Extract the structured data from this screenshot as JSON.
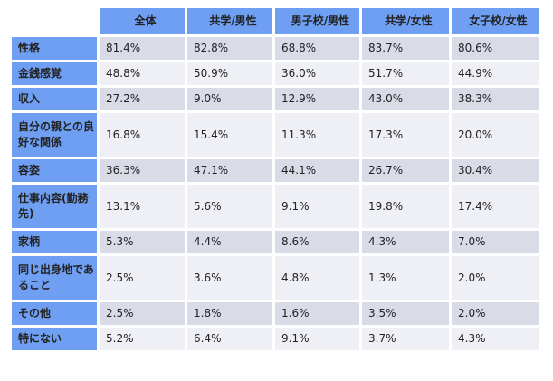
{
  "table": {
    "columns": [
      "全体",
      "共学/男性",
      "男子校/男性",
      "共学/女性",
      "女子校/女性"
    ],
    "rows": [
      {
        "label": "性格",
        "values": [
          "81.4%",
          "82.8%",
          "68.8%",
          "83.7%",
          "80.6%"
        ]
      },
      {
        "label": "金銭感覚",
        "values": [
          "48.8%",
          "50.9%",
          "36.0%",
          "51.7%",
          "44.9%"
        ]
      },
      {
        "label": "収入",
        "values": [
          "27.2%",
          "9.0%",
          "12.9%",
          "43.0%",
          "38.3%"
        ]
      },
      {
        "label": "自分の親との良好な関係",
        "values": [
          "16.8%",
          "15.4%",
          "11.3%",
          "17.3%",
          "20.0%"
        ]
      },
      {
        "label": "容姿",
        "values": [
          "36.3%",
          "47.1%",
          "44.1%",
          "26.7%",
          "30.4%"
        ]
      },
      {
        "label": "仕事内容(勤務先)",
        "values": [
          "13.1%",
          "5.6%",
          "9.1%",
          "19.8%",
          "17.4%"
        ]
      },
      {
        "label": "家柄",
        "values": [
          "5.3%",
          "4.4%",
          "8.6%",
          "4.3%",
          "7.0%"
        ]
      },
      {
        "label": "同じ出身地であること",
        "values": [
          "2.5%",
          "3.6%",
          "4.8%",
          "1.3%",
          "2.0%"
        ]
      },
      {
        "label": "その他",
        "values": [
          "2.5%",
          "1.8%",
          "1.6%",
          "3.5%",
          "2.0%"
        ]
      },
      {
        "label": "特にない",
        "values": [
          "5.2%",
          "6.4%",
          "9.1%",
          "3.7%",
          "4.3%"
        ]
      }
    ]
  },
  "colors": {
    "header_blue": "#6f9ff3",
    "row_dark": "#d9dbe6",
    "row_light": "#eff0f6"
  }
}
